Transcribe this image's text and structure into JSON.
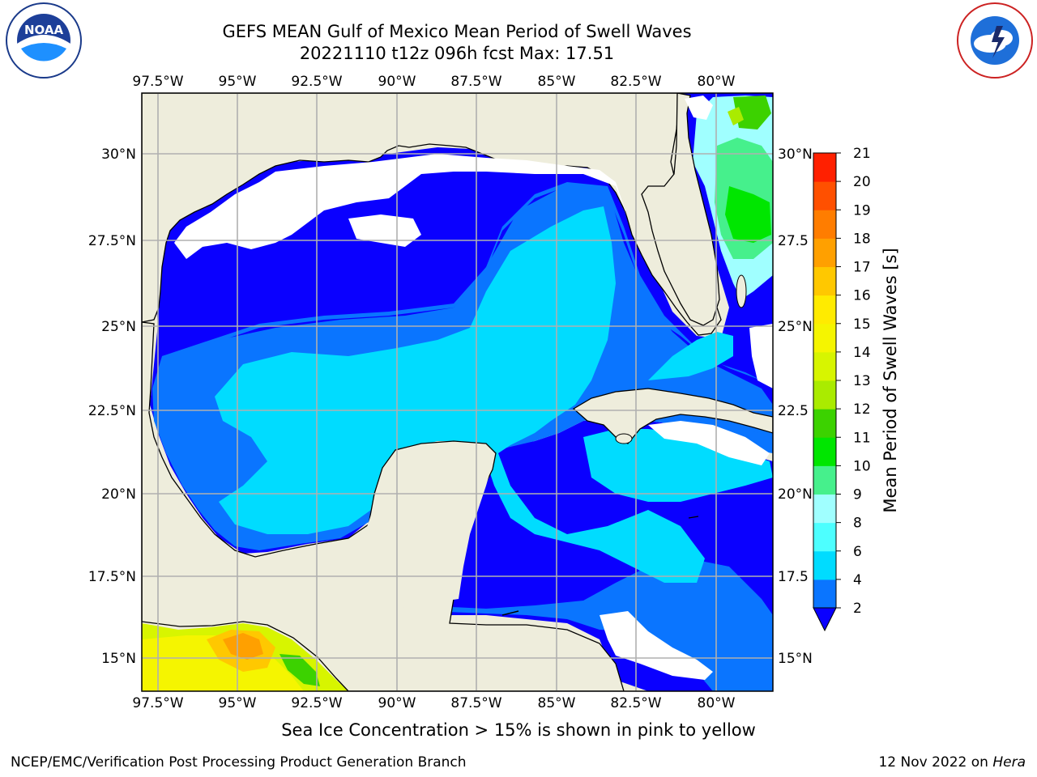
{
  "title": {
    "line1": "GEFS MEAN Gulf of Mexico Mean Period of Swell Waves",
    "line2": "20221110 t12z 096h fcst   Max: 17.51"
  },
  "map": {
    "lon_labels": [
      "97.5°W",
      "95°W",
      "92.5°W",
      "90°W",
      "87.5°W",
      "85°W",
      "82.5°W",
      "80°W"
    ],
    "lat_labels_left": [
      "30°N",
      "27.5°N",
      "25°N",
      "22.5°N",
      "20°N",
      "17.5°N",
      "15°N"
    ],
    "lat_labels_right": [
      "30°N",
      "27.5",
      "25°N",
      "22.5",
      "20°N",
      "17.5",
      "15°N"
    ],
    "lon_range": [
      "98°W",
      "78.5°W"
    ],
    "lat_range": [
      "14°N",
      "31.8°N"
    ],
    "colors": {
      "land": "#eeeddc",
      "coast": "#000000",
      "grid": "#b0b0b0"
    }
  },
  "colorbar": {
    "label": "Mean Period of Swell Waves [s]",
    "ticks": [
      "2",
      "4",
      "6",
      "8",
      "9",
      "10",
      "11",
      "12",
      "13",
      "14",
      "15",
      "16",
      "17",
      "18",
      "19",
      "20",
      "21"
    ],
    "levels": [
      2,
      4,
      6,
      8,
      9,
      10,
      11,
      12,
      13,
      14,
      15,
      16,
      17,
      18,
      19,
      20,
      21
    ],
    "colors": [
      "#0a75ff",
      "#00dcff",
      "#4dffff",
      "#a0ffff",
      "#46f08c",
      "#00e600",
      "#3cd200",
      "#aaeb00",
      "#d7f500",
      "#f5f500",
      "#ffeb00",
      "#ffc800",
      "#ffa000",
      "#ff7d00",
      "#ff5000",
      "#ff2000"
    ],
    "under_color": "#0a00ff"
  },
  "caption": "Sea Ice Concentration > 15% is shown in pink to yellow",
  "footer": {
    "left": "NCEP/EMC/Verification Post Processing Product Generation Branch",
    "right_date": "12 Nov 2022 on",
    "right_host": "Hera"
  },
  "logos": {
    "left": "noaa-logo",
    "right": "nws-logo"
  }
}
